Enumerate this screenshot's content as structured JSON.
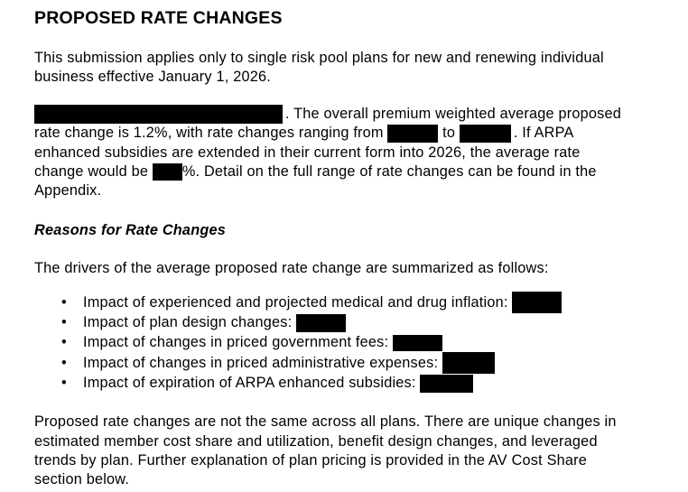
{
  "page": {
    "title": "PROPOSED RATE CHANGES",
    "intro": {
      "line1": "This submission applies only to single risk pool plans for new and renewing individual",
      "line2": "business effective January 1, 2026."
    },
    "overview": {
      "line1_after_redaction": ". The overall premium weighted average proposed",
      "line2_start": "rate change is 1.2%, with rate changes ranging from ",
      "line2_mid": " to ",
      "line2_end": ". If ARPA",
      "line3": "enhanced subsidies are extended in their current form into 2026, the average rate",
      "line4_start": "change would be ",
      "line4_end": "%. Detail on the full range of rate changes can be found in the",
      "line5": "Appendix."
    },
    "reasons": {
      "heading": "Reasons for Rate Changes",
      "intro": "The drivers of the average proposed rate change are summarized as follows:",
      "bullet_glyph": "•",
      "bullets": [
        "Impact of experienced and projected medical and drug inflation: ",
        "Impact of plan design changes: ",
        "Impact of changes in priced government fees: ",
        "Impact of changes in priced administrative expenses: ",
        "Impact of expiration of ARPA enhanced subsidies: "
      ]
    },
    "closing": {
      "line1": "Proposed rate changes are not the same across all plans. There are unique changes in",
      "line2": "estimated member cost share and utilization, benefit design changes, and leveraged",
      "line3": "trends by plan. Further explanation of plan pricing is provided in the AV Cost Share",
      "line4": "section below."
    },
    "colors": {
      "text": "#000000",
      "background": "#ffffff",
      "redaction": "#000000"
    }
  }
}
